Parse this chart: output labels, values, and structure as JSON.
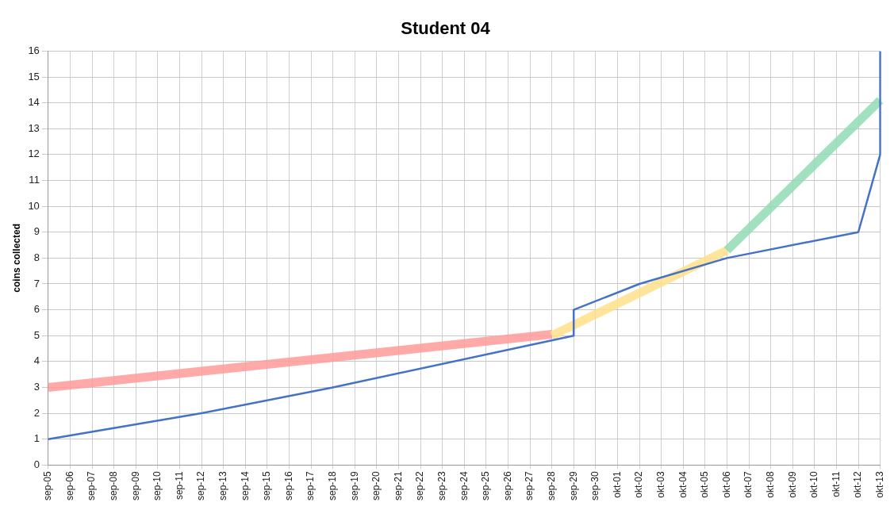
{
  "chart_data": {
    "type": "line",
    "title": "Student 04",
    "ylabel": "coins collected",
    "categories": [
      "sep-05",
      "sep-06",
      "sep-07",
      "sep-08",
      "sep-09",
      "sep-10",
      "sep-11",
      "sep-12",
      "sep-13",
      "sep-14",
      "sep-15",
      "sep-16",
      "sep-17",
      "sep-18",
      "sep-19",
      "sep-20",
      "sep-21",
      "sep-22",
      "sep-23",
      "sep-24",
      "sep-25",
      "sep-26",
      "sep-27",
      "sep-28",
      "sep-29",
      "sep-30",
      "okt-01",
      "okt-02",
      "okt-03",
      "okt-04",
      "okt-05",
      "okt-06",
      "okt-07",
      "okt-08",
      "okt-09",
      "okt-10",
      "okt-11",
      "okt-12",
      "okt-13"
    ],
    "series": [
      {
        "color": "#ff9a9a",
        "x": [
          "sep-05",
          "sep-28"
        ],
        "values": [
          3,
          5.05
        ]
      },
      {
        "color": "#ffe08a",
        "x": [
          "sep-28",
          "okt-06"
        ],
        "values": [
          5,
          8.3
        ]
      },
      {
        "color": "#90dcb4",
        "x": [
          "okt-06",
          "okt-13"
        ],
        "values": [
          8.3,
          14.1
        ]
      },
      {
        "color": "#4472c4",
        "x": [
          "sep-05",
          "sep-12",
          "sep-18",
          "sep-29",
          "sep-29",
          "okt-02",
          "okt-06",
          "okt-12",
          "okt-13",
          "okt-13"
        ],
        "values": [
          1,
          2,
          3,
          5,
          6,
          7,
          8,
          9,
          12,
          16
        ]
      }
    ],
    "ylim": [
      0,
      16
    ],
    "yticks": [
      0,
      1,
      2,
      3,
      4,
      5,
      6,
      7,
      8,
      9,
      10,
      11,
      12,
      13,
      14,
      15,
      16
    ],
    "grid": true,
    "legend": false,
    "marker": "none",
    "line_style": "solid"
  }
}
